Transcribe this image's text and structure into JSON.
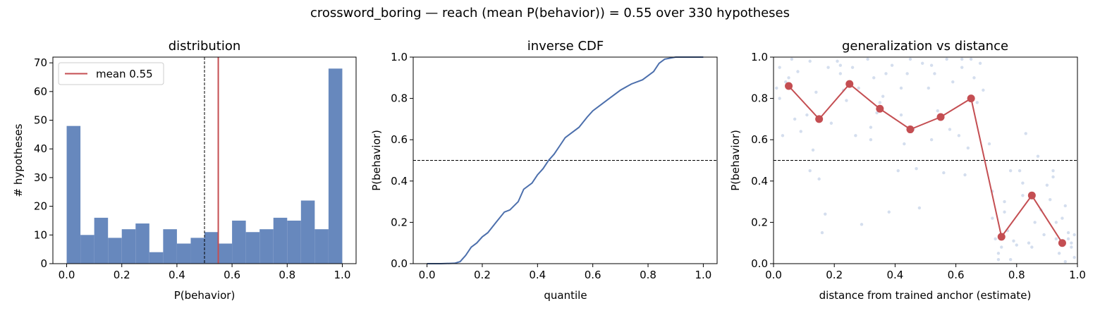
{
  "figure": {
    "suptitle": "crossword_boring  —  reach (mean P(behavior)) = 0.55  over 330 hypotheses"
  },
  "colors": {
    "bar": "#6788bd",
    "line": "#4c6fac",
    "mean": "#c44e52",
    "scatter": "#c6d3e8",
    "ref": "#000000"
  },
  "chart_data": [
    {
      "type": "bar",
      "title": "distribution",
      "xlabel": "P(behavior)",
      "ylabel": "# hypotheses",
      "xlim": [
        -0.05,
        1.05
      ],
      "ylim": [
        0,
        72
      ],
      "xticks": [
        "0.0",
        "0.2",
        "0.4",
        "0.6",
        "0.8",
        "1.0"
      ],
      "xtick_values": [
        0,
        0.2,
        0.4,
        0.6,
        0.8,
        1.0
      ],
      "yticks": [
        "0",
        "10",
        "20",
        "30",
        "40",
        "50",
        "60",
        "70"
      ],
      "ytick_values": [
        0,
        10,
        20,
        30,
        40,
        50,
        60,
        70
      ],
      "bin_edges": [
        0.0,
        0.05,
        0.1,
        0.15,
        0.2,
        0.25,
        0.3,
        0.35,
        0.4,
        0.45,
        0.5,
        0.55,
        0.6,
        0.65,
        0.7,
        0.75,
        0.8,
        0.85,
        0.9,
        0.95,
        1.0
      ],
      "values": [
        48,
        10,
        16,
        9,
        12,
        14,
        4,
        12,
        7,
        9,
        11,
        7,
        15,
        11,
        12,
        16,
        15,
        22,
        12,
        68
      ],
      "reference_line": 0.5,
      "mean_line": 0.55,
      "legend": {
        "label": "mean 0.55",
        "placement": "upper-left"
      }
    },
    {
      "type": "line",
      "title": "inverse CDF",
      "xlabel": "quantile",
      "ylabel": "P(behavior)",
      "xlim": [
        -0.05,
        1.05
      ],
      "ylim": [
        0,
        1
      ],
      "xticks": [
        "0.0",
        "0.2",
        "0.4",
        "0.6",
        "0.8",
        "1.0"
      ],
      "xtick_values": [
        0,
        0.2,
        0.4,
        0.6,
        0.8,
        1.0
      ],
      "yticks": [
        "0.0",
        "0.2",
        "0.4",
        "0.6",
        "0.8",
        "1.0"
      ],
      "ytick_values": [
        0,
        0.2,
        0.4,
        0.6,
        0.8,
        1.0
      ],
      "reference_line": 0.5,
      "x": [
        0.0,
        0.05,
        0.1,
        0.12,
        0.14,
        0.16,
        0.18,
        0.2,
        0.22,
        0.25,
        0.28,
        0.3,
        0.33,
        0.35,
        0.38,
        0.4,
        0.42,
        0.44,
        0.46,
        0.48,
        0.5,
        0.52,
        0.55,
        0.58,
        0.6,
        0.63,
        0.66,
        0.7,
        0.74,
        0.78,
        0.8,
        0.82,
        0.84,
        0.86,
        0.9,
        0.95,
        1.0
      ],
      "y": [
        0.0,
        0.0,
        0.002,
        0.01,
        0.04,
        0.08,
        0.1,
        0.13,
        0.15,
        0.2,
        0.25,
        0.26,
        0.3,
        0.36,
        0.39,
        0.43,
        0.46,
        0.5,
        0.53,
        0.57,
        0.61,
        0.63,
        0.66,
        0.71,
        0.74,
        0.77,
        0.8,
        0.84,
        0.87,
        0.89,
        0.91,
        0.93,
        0.97,
        0.99,
        1.0,
        1.0,
        1.0
      ]
    },
    {
      "type": "scatter",
      "title": "generalization vs distance",
      "xlabel": "distance from trained anchor (estimate)",
      "ylabel": "P(behavior)",
      "xlim": [
        0,
        1
      ],
      "ylim": [
        0,
        1
      ],
      "xticks": [
        "0.0",
        "0.2",
        "0.4",
        "0.6",
        "0.8",
        "1.0"
      ],
      "xtick_values": [
        0,
        0.2,
        0.4,
        0.6,
        0.8,
        1.0
      ],
      "yticks": [
        "0.0",
        "0.2",
        "0.4",
        "0.6",
        "0.8",
        "1.0"
      ],
      "ytick_values": [
        0,
        0.2,
        0.4,
        0.6,
        0.8,
        1.0
      ],
      "reference_line": 0.5,
      "binned_mean": {
        "x": [
          0.05,
          0.15,
          0.25,
          0.35,
          0.45,
          0.55,
          0.65,
          0.75,
          0.85,
          0.95
        ],
        "y": [
          0.86,
          0.7,
          0.87,
          0.75,
          0.65,
          0.71,
          0.8,
          0.13,
          0.33,
          0.1
        ]
      },
      "points": {
        "x": [
          0.01,
          0.02,
          0.03,
          0.04,
          0.06,
          0.07,
          0.08,
          0.09,
          0.02,
          0.05,
          0.11,
          0.12,
          0.13,
          0.14,
          0.16,
          0.17,
          0.18,
          0.19,
          0.12,
          0.15,
          0.21,
          0.22,
          0.23,
          0.24,
          0.26,
          0.27,
          0.28,
          0.29,
          0.22,
          0.25,
          0.31,
          0.32,
          0.33,
          0.34,
          0.36,
          0.37,
          0.38,
          0.39,
          0.32,
          0.35,
          0.41,
          0.42,
          0.43,
          0.44,
          0.46,
          0.47,
          0.48,
          0.49,
          0.42,
          0.45,
          0.51,
          0.52,
          0.53,
          0.54,
          0.56,
          0.57,
          0.58,
          0.59,
          0.52,
          0.55,
          0.61,
          0.62,
          0.63,
          0.64,
          0.66,
          0.67,
          0.68,
          0.69,
          0.62,
          0.65,
          0.71,
          0.72,
          0.73,
          0.74,
          0.76,
          0.77,
          0.78,
          0.79,
          0.72,
          0.75,
          0.81,
          0.82,
          0.83,
          0.84,
          0.86,
          0.87,
          0.88,
          0.89,
          0.82,
          0.85,
          0.91,
          0.92,
          0.93,
          0.94,
          0.96,
          0.97,
          0.98,
          0.99,
          0.92,
          0.95,
          0.97,
          0.98,
          0.99,
          0.96,
          0.93,
          0.9,
          0.76,
          0.78,
          0.74,
          0.8
        ],
        "y": [
          0.85,
          0.95,
          0.62,
          0.88,
          0.99,
          0.7,
          0.93,
          0.64,
          0.8,
          0.9,
          0.72,
          0.98,
          0.55,
          0.83,
          0.15,
          0.24,
          0.95,
          0.68,
          0.45,
          0.41,
          0.98,
          0.92,
          0.84,
          0.79,
          0.95,
          0.62,
          0.85,
          0.19,
          0.96,
          0.88,
          0.99,
          0.66,
          0.9,
          0.73,
          0.81,
          0.92,
          0.25,
          0.96,
          0.6,
          0.78,
          0.45,
          0.85,
          0.58,
          0.92,
          0.65,
          0.46,
          0.27,
          0.97,
          0.72,
          0.99,
          0.85,
          0.6,
          0.92,
          0.74,
          0.44,
          0.99,
          0.65,
          0.88,
          0.96,
          0.71,
          0.62,
          0.99,
          0.43,
          0.56,
          0.9,
          0.78,
          0.97,
          0.84,
          0.95,
          0.99,
          0.58,
          0.35,
          0.12,
          0.05,
          0.25,
          0.16,
          0.02,
          0.11,
          0.22,
          0.08,
          0.45,
          0.39,
          0.63,
          0.1,
          0.2,
          0.52,
          0.26,
          0.14,
          0.33,
          0.08,
          0.31,
          0.45,
          0.12,
          0.05,
          0.28,
          0.15,
          0.1,
          0.03,
          0.42,
          0.22,
          0.12,
          0.08,
          0.14,
          0.01,
          0.2,
          0.38,
          0.3,
          0.45,
          0.02,
          0.09
        ]
      }
    }
  ]
}
